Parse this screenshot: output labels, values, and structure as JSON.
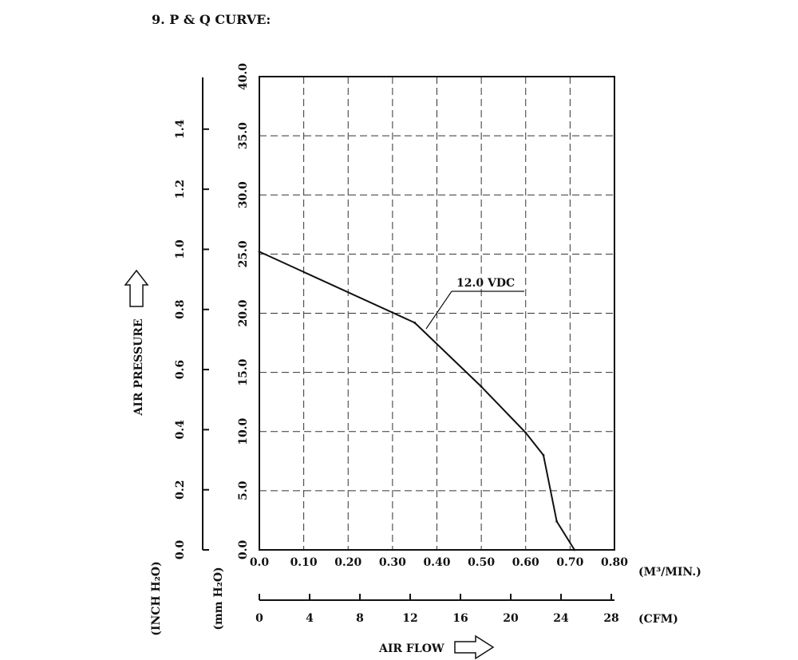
{
  "header": {
    "title": "9. P & Q CURVE:"
  },
  "chart_data": {
    "type": "line",
    "title": "9. P & Q CURVE:",
    "ylabel": "AIR PRESSURE",
    "xlabel": "AIR FLOW",
    "x_unit_primary": "(M³/MIN.)",
    "x_unit_secondary": "(CFM)",
    "y_unit_primary": "(mm H₂O)",
    "y_unit_secondary": "(INCH H₂O)",
    "xlim": [
      0,
      0.8
    ],
    "ylim": [
      0,
      40
    ],
    "x_ticks": [
      "0.0",
      "0.10",
      "0.20",
      "0.30",
      "0.40",
      "0.50",
      "0.60",
      "0.70",
      "0.80"
    ],
    "y_ticks": [
      "0.0",
      "5.0",
      "10.0",
      "15.0",
      "20.0",
      "25.0",
      "30.0",
      "35.0",
      "40.0"
    ],
    "cfm_ticks": [
      "0",
      "4",
      "8",
      "12",
      "16",
      "20",
      "24",
      "28"
    ],
    "cfm_lim": [
      0,
      28.25
    ],
    "inch_ticks": [
      "0.0",
      "0.2",
      "0.4",
      "0.6",
      "0.8",
      "1.0",
      "1.2",
      "1.4"
    ],
    "inch_lim": [
      0,
      1.5748
    ],
    "grid": true,
    "series": [
      {
        "name": "12.0 VDC",
        "x": [
          0.0,
          0.35,
          0.5,
          0.6,
          0.64,
          0.67,
          0.71
        ],
        "y": [
          25.2,
          19.2,
          13.8,
          9.9,
          8.0,
          2.4,
          0.0
        ]
      }
    ]
  }
}
